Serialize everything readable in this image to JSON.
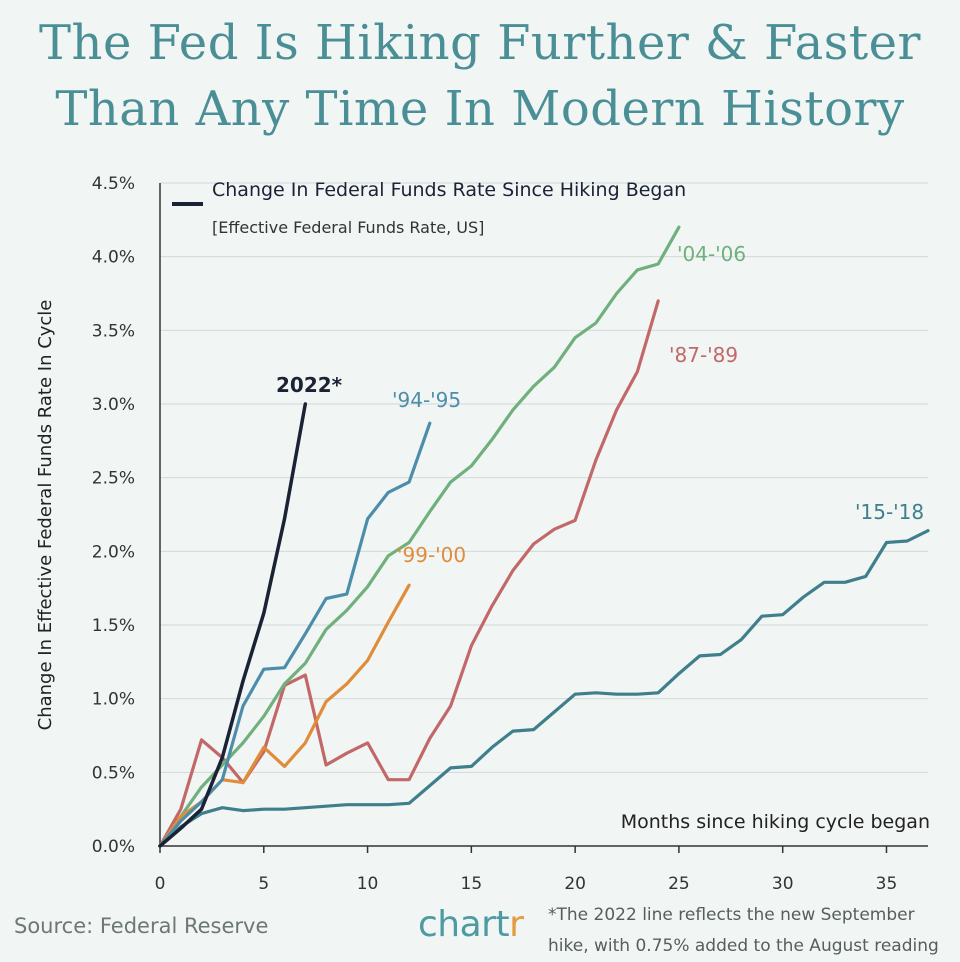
{
  "title_line1": "The Fed Is Hiking Further & Faster",
  "title_line2": "Than Any Time In Modern History",
  "source": "Source: Federal Reserve",
  "brand": {
    "main": "chart",
    "accent": "r"
  },
  "footnote_line1": "*The 2022 line reflects the new September",
  "footnote_line2": "hike, with 0.75% added to the August reading",
  "colors": {
    "title": "#4b8f96",
    "axis": "#333333",
    "grid": "#d3d8d8"
  },
  "chart_data": {
    "type": "line",
    "legend_title": "Change In Federal Funds Rate Since Hiking Began",
    "legend_subtitle": "[Effective Federal Funds Rate, US]",
    "xlabel": "Months since hiking cycle began",
    "ylabel": "Change In Effective Federal Funds Rate In Cycle",
    "xlim": [
      0,
      37
    ],
    "ylim": [
      0,
      4.5
    ],
    "xticks": [
      "0",
      "5",
      "10",
      "15",
      "20",
      "25",
      "30",
      "35"
    ],
    "yticks": [
      "0.0%",
      "0.5%",
      "1.0%",
      "1.5%",
      "2.0%",
      "2.5%",
      "3.0%",
      "3.5%",
      "4.0%",
      "4.5%"
    ],
    "grid": true,
    "series": [
      {
        "name": "'15-'18",
        "color": "#3f7f8c",
        "x": [
          0,
          1,
          2,
          3,
          4,
          5,
          6,
          7,
          8,
          9,
          10,
          11,
          12,
          13,
          14,
          15,
          16,
          17,
          18,
          19,
          20,
          21,
          22,
          23,
          24,
          25,
          26,
          27,
          28,
          29,
          30,
          31,
          32,
          33,
          34,
          35,
          36,
          37
        ],
        "y": [
          0,
          0.13,
          0.22,
          0.26,
          0.24,
          0.25,
          0.25,
          0.26,
          0.27,
          0.28,
          0.28,
          0.28,
          0.29,
          0.41,
          0.53,
          0.54,
          0.67,
          0.78,
          0.79,
          0.91,
          1.03,
          1.04,
          1.03,
          1.03,
          1.04,
          1.17,
          1.29,
          1.3,
          1.4,
          1.56,
          1.57,
          1.69,
          1.79,
          1.79,
          1.83,
          2.06,
          2.07,
          2.14
        ]
      },
      {
        "name": "'87-'89",
        "color": "#c26868",
        "x": [
          0,
          1,
          2,
          3,
          4,
          5,
          6,
          7,
          8,
          9,
          10,
          11,
          12,
          13,
          14,
          15,
          16,
          17,
          18,
          19,
          20,
          21,
          22,
          23,
          24
        ],
        "y": [
          0,
          0.25,
          0.72,
          0.6,
          0.43,
          0.64,
          1.09,
          1.16,
          0.55,
          0.63,
          0.7,
          0.45,
          0.45,
          0.73,
          0.95,
          1.36,
          1.63,
          1.87,
          2.05,
          2.15,
          2.21,
          2.62,
          2.96,
          3.22,
          3.7
        ]
      },
      {
        "name": "'04-'06",
        "color": "#6fb07c",
        "x": [
          0,
          1,
          2,
          3,
          4,
          5,
          6,
          7,
          8,
          9,
          10,
          11,
          12,
          13,
          14,
          15,
          16,
          17,
          18,
          19,
          20,
          21,
          22,
          23,
          24,
          25
        ],
        "y": [
          0,
          0.2,
          0.4,
          0.55,
          0.7,
          0.88,
          1.1,
          1.24,
          1.47,
          1.6,
          1.76,
          1.97,
          2.06,
          2.27,
          2.47,
          2.58,
          2.76,
          2.96,
          3.12,
          3.25,
          3.45,
          3.55,
          3.75,
          3.91,
          3.95,
          4.2
        ]
      },
      {
        "name": "'99-'00",
        "color": "#e08c3a",
        "x": [
          0,
          1,
          2,
          3,
          4,
          5,
          6,
          7,
          8,
          9,
          10,
          11,
          12
        ],
        "y": [
          0,
          0.2,
          0.3,
          0.45,
          0.43,
          0.67,
          0.54,
          0.7,
          0.98,
          1.1,
          1.26,
          1.52,
          1.77
        ]
      },
      {
        "name": "'94-'95",
        "color": "#4c8eaa",
        "x": [
          0,
          1,
          2,
          3,
          4,
          5,
          6,
          7,
          8,
          9,
          10,
          11,
          12,
          13
        ],
        "y": [
          0,
          0.17,
          0.3,
          0.45,
          0.95,
          1.2,
          1.21,
          1.44,
          1.68,
          1.71,
          2.22,
          2.4,
          2.47,
          2.87
        ]
      },
      {
        "name": "2022*",
        "color": "#1b2235",
        "x": [
          0,
          1,
          2,
          3,
          4,
          5,
          6,
          7
        ],
        "y": [
          0,
          0.12,
          0.25,
          0.6,
          1.12,
          1.58,
          2.22,
          3.0
        ]
      }
    ]
  }
}
